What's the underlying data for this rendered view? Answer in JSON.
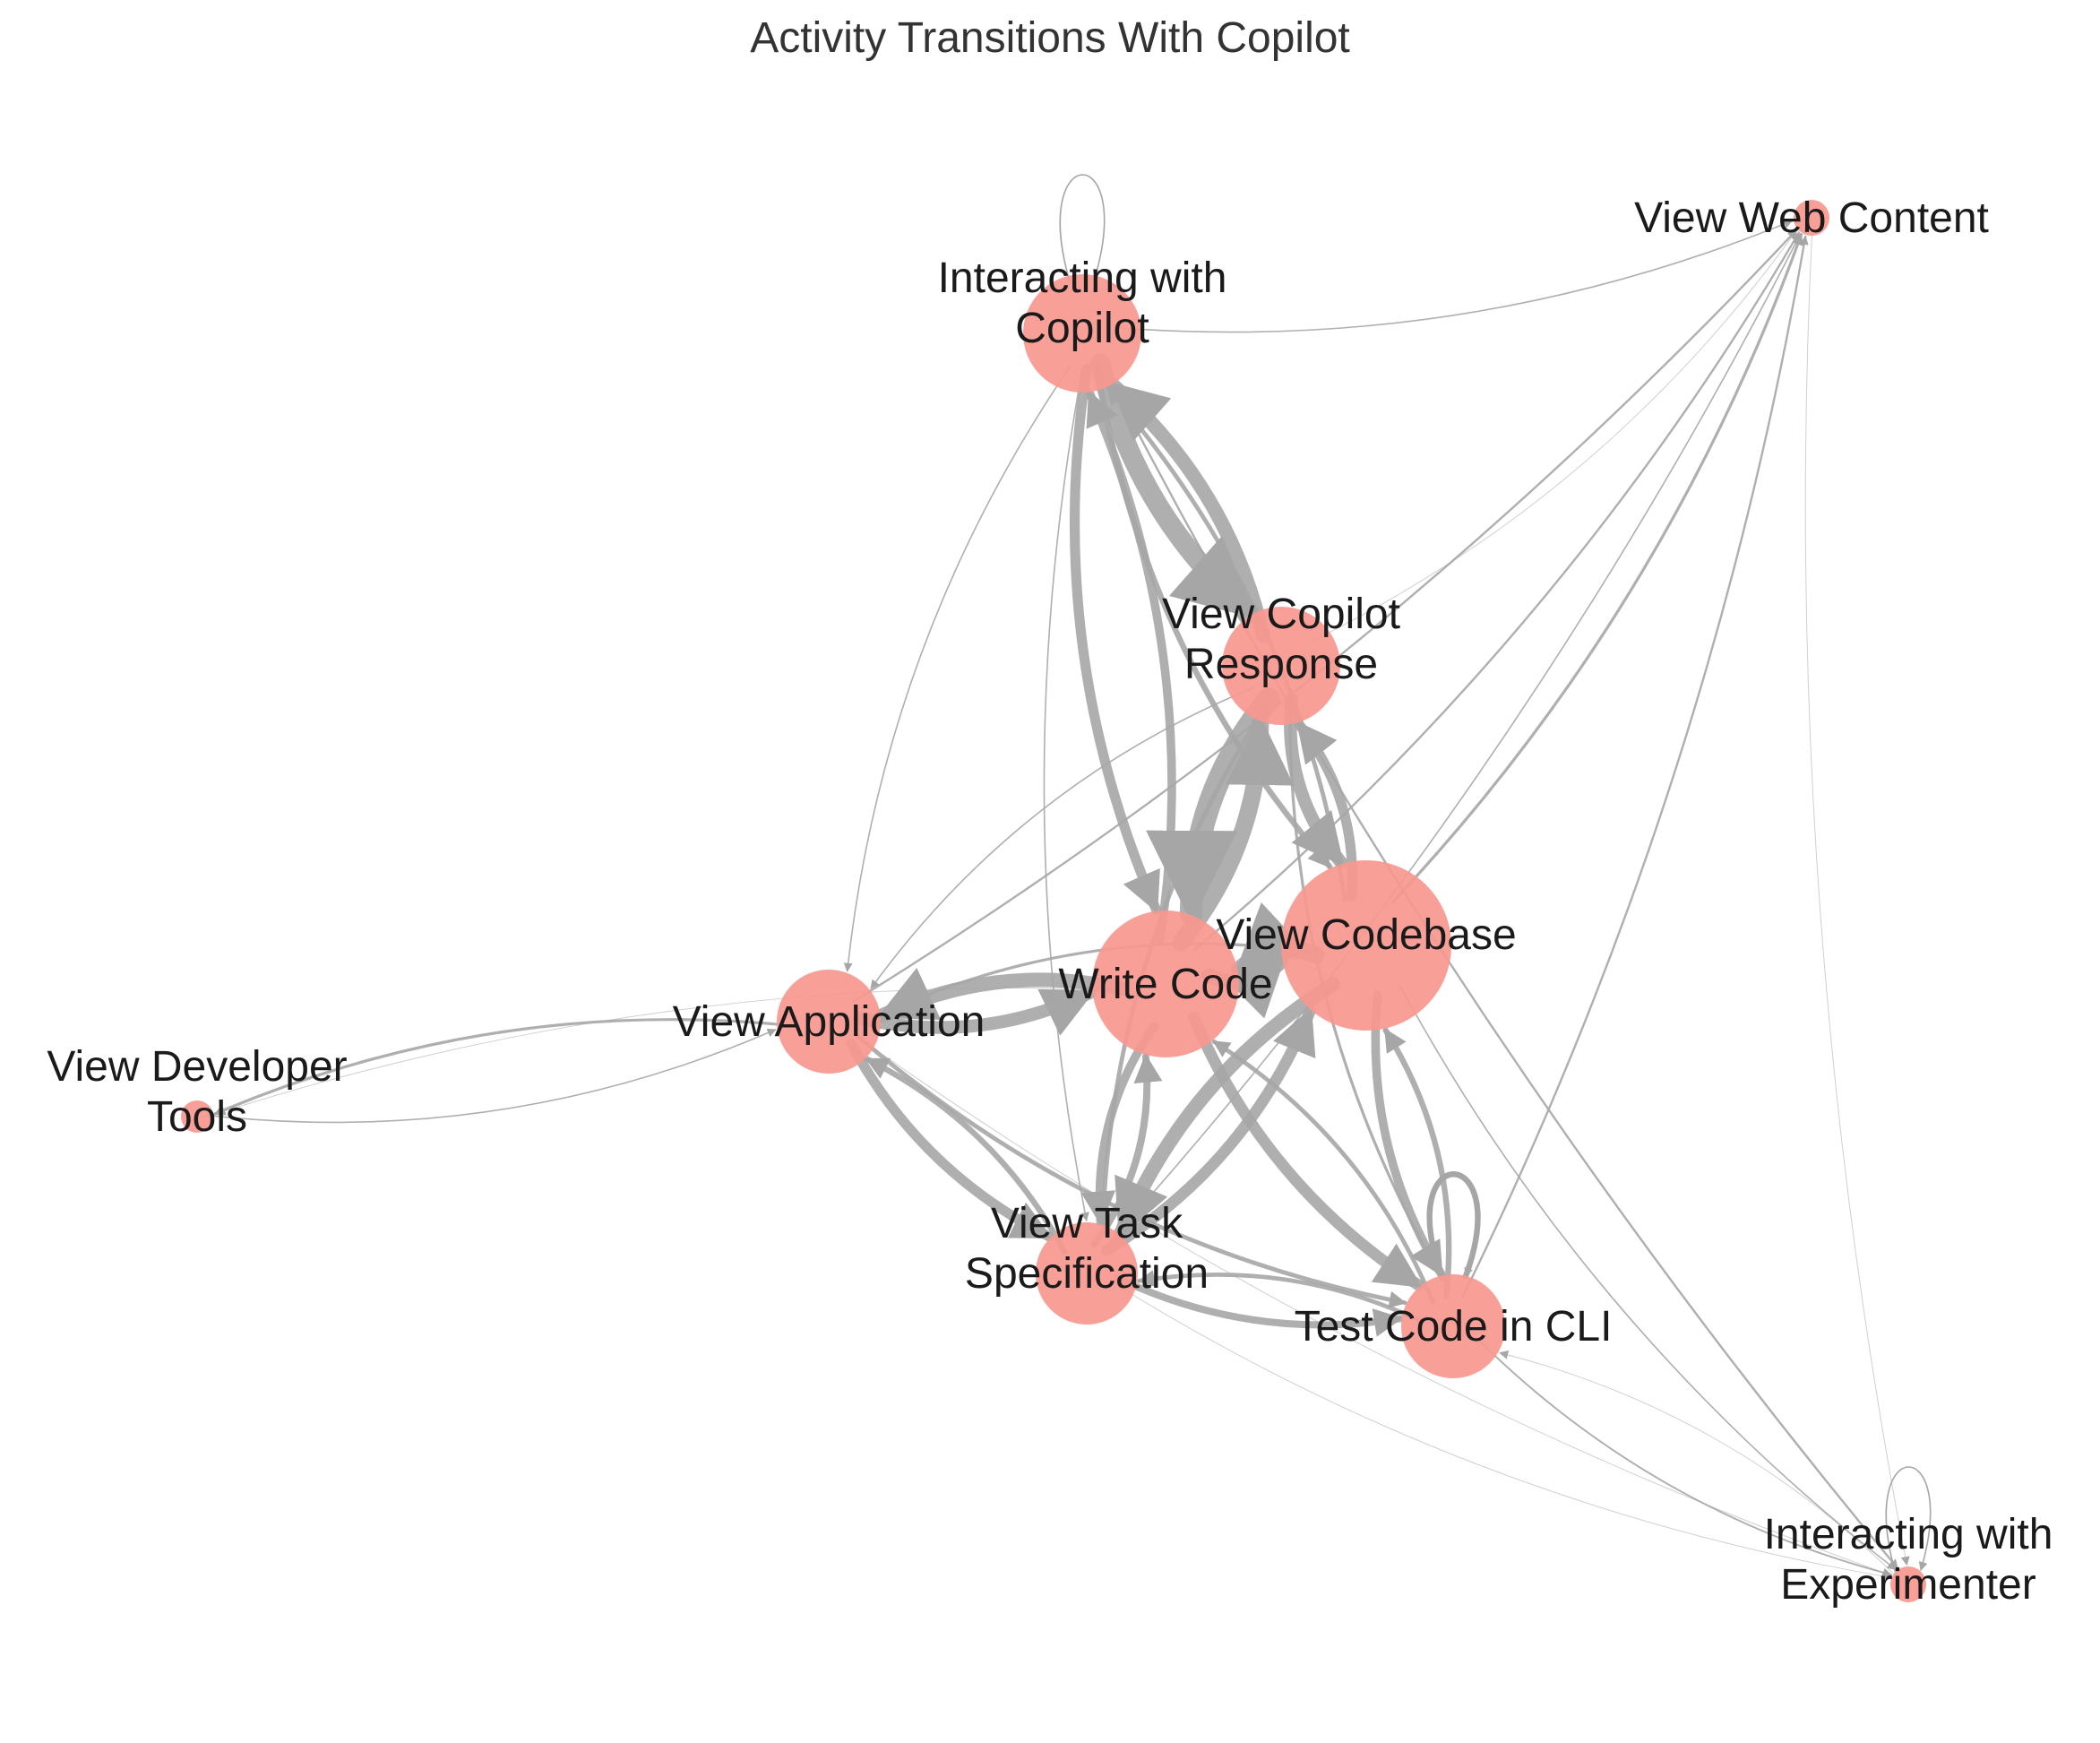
{
  "title": "Activity Transitions With Copilot",
  "colors": {
    "node": "#f7978f",
    "edge": "#a6a6a6",
    "title": "#333333",
    "label": "#1a1a1a"
  },
  "nodes": [
    {
      "id": "copilot",
      "name": "node-interacting-with-copilot",
      "lines": [
        "Interacting with",
        "Copilot"
      ]
    },
    {
      "id": "web",
      "name": "node-view-web-content",
      "lines": [
        "View Web Content"
      ]
    },
    {
      "id": "response",
      "name": "node-view-copilot-response",
      "lines": [
        "View Copilot",
        "Response"
      ]
    },
    {
      "id": "codebase",
      "name": "node-view-codebase",
      "lines": [
        "View Codebase"
      ]
    },
    {
      "id": "write",
      "name": "node-write-code",
      "lines": [
        "Write Code"
      ]
    },
    {
      "id": "app",
      "name": "node-view-application",
      "lines": [
        "View Application"
      ]
    },
    {
      "id": "devtools",
      "name": "node-view-developer-tools",
      "lines": [
        "View Developer",
        "Tools"
      ]
    },
    {
      "id": "task",
      "name": "node-view-task-specification",
      "lines": [
        "View Task",
        "Specification"
      ]
    },
    {
      "id": "cli",
      "name": "node-test-code-in-cli",
      "lines": [
        "Test Code in CLI"
      ]
    },
    {
      "id": "experimenter",
      "name": "node-interacting-with-experimenter",
      "lines": [
        "Interacting with",
        "Experimenter"
      ]
    }
  ],
  "edges": [
    {
      "from": "copilot",
      "to": "response",
      "weight": 14
    },
    {
      "from": "response",
      "to": "copilot",
      "weight": 10
    },
    {
      "from": "copilot",
      "to": "write",
      "weight": 7
    },
    {
      "from": "write",
      "to": "copilot",
      "weight": 6
    },
    {
      "from": "copilot",
      "to": "codebase",
      "weight": 4
    },
    {
      "from": "codebase",
      "to": "copilot",
      "weight": 3
    },
    {
      "from": "copilot",
      "to": "app",
      "weight": 1
    },
    {
      "from": "copilot",
      "to": "task",
      "weight": 1
    },
    {
      "from": "copilot",
      "to": "web",
      "weight": 1
    },
    {
      "from": "copilot",
      "to": "experimenter",
      "weight": 1.5
    },
    {
      "from": "response",
      "to": "write",
      "weight": 16
    },
    {
      "from": "write",
      "to": "response",
      "weight": 12
    },
    {
      "from": "response",
      "to": "codebase",
      "weight": 9
    },
    {
      "from": "codebase",
      "to": "response",
      "weight": 7
    },
    {
      "from": "response",
      "to": "task",
      "weight": 3
    },
    {
      "from": "response",
      "to": "app",
      "weight": 1
    },
    {
      "from": "response",
      "to": "cli",
      "weight": 2
    },
    {
      "from": "response",
      "to": "web",
      "weight": 0.6
    },
    {
      "from": "codebase",
      "to": "write",
      "weight": 12
    },
    {
      "from": "write",
      "to": "codebase",
      "weight": 10
    },
    {
      "from": "codebase",
      "to": "cli",
      "weight": 6
    },
    {
      "from": "cli",
      "to": "codebase",
      "weight": 4
    },
    {
      "from": "codebase",
      "to": "task",
      "weight": 10
    },
    {
      "from": "task",
      "to": "codebase",
      "weight": 8
    },
    {
      "from": "codebase",
      "to": "web",
      "weight": 2
    },
    {
      "from": "codebase",
      "to": "app",
      "weight": 2
    },
    {
      "from": "codebase",
      "to": "experimenter",
      "weight": 1
    },
    {
      "from": "write",
      "to": "app",
      "weight": 10
    },
    {
      "from": "app",
      "to": "write",
      "weight": 9
    },
    {
      "from": "write",
      "to": "cli",
      "weight": 8
    },
    {
      "from": "cli",
      "to": "write",
      "weight": 3
    },
    {
      "from": "write",
      "to": "task",
      "weight": 6
    },
    {
      "from": "task",
      "to": "write",
      "weight": 5
    },
    {
      "from": "write",
      "to": "web",
      "weight": 1.5
    },
    {
      "from": "write",
      "to": "devtools",
      "weight": 0.6
    },
    {
      "from": "app",
      "to": "devtools",
      "weight": 2
    },
    {
      "from": "devtools",
      "to": "app",
      "weight": 1
    },
    {
      "from": "app",
      "to": "task",
      "weight": 7
    },
    {
      "from": "task",
      "to": "app",
      "weight": 4
    },
    {
      "from": "app",
      "to": "cli",
      "weight": 3
    },
    {
      "from": "app",
      "to": "web",
      "weight": 1.5
    },
    {
      "from": "app",
      "to": "experimenter",
      "weight": 0.6
    },
    {
      "from": "task",
      "to": "cli",
      "weight": 5
    },
    {
      "from": "cli",
      "to": "task",
      "weight": 3
    },
    {
      "from": "task",
      "to": "web",
      "weight": 1
    },
    {
      "from": "task",
      "to": "experimenter",
      "weight": 0.6
    },
    {
      "from": "cli",
      "to": "web",
      "weight": 1.5
    },
    {
      "from": "cli",
      "to": "experimenter",
      "weight": 1.2
    },
    {
      "from": "web",
      "to": "experimenter",
      "weight": 0.6
    },
    {
      "from": "experimenter",
      "to": "cli",
      "weight": 0.6
    }
  ],
  "self_loops": [
    {
      "node": "copilot",
      "weight": 1
    },
    {
      "node": "cli",
      "weight": 4
    },
    {
      "node": "experimenter",
      "weight": 1
    }
  ]
}
